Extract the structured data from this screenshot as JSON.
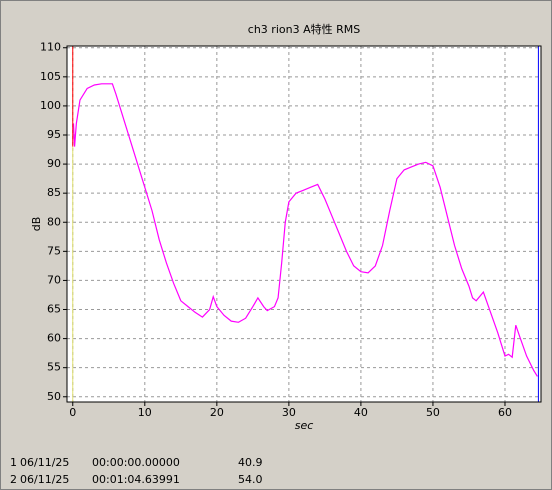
{
  "chart_data": {
    "type": "line",
    "title": "ch3 rion3 A特性 RMS",
    "x_label": "sec",
    "y_label": "dB",
    "color": "#ff00ff",
    "grid": true,
    "xlim": [
      -0.8,
      65
    ],
    "ylim": [
      49.1,
      110.3
    ],
    "xticks": [
      0,
      10,
      20,
      30,
      40,
      50,
      60
    ],
    "yticks": [
      50,
      55,
      60,
      65,
      70,
      75,
      80,
      85,
      90,
      95,
      100,
      105,
      110
    ],
    "x": [
      0.1,
      0.25,
      0.5,
      1,
      2,
      3,
      4,
      5.5,
      6,
      7,
      8,
      9,
      10,
      11,
      12,
      13,
      14,
      15,
      16,
      17,
      18,
      19,
      19.5,
      20,
      21,
      22,
      23,
      24,
      25,
      25.7,
      26.5,
      27,
      28,
      28.5,
      29,
      29.5,
      30,
      31,
      32,
      33,
      34,
      35,
      36,
      37,
      38,
      39,
      40,
      41,
      42,
      43,
      44,
      45,
      46,
      47,
      48,
      49,
      50,
      51,
      52,
      53,
      54,
      55,
      55.5,
      56,
      57,
      58,
      59,
      60,
      60.5,
      61,
      61.5,
      62,
      63,
      64,
      64.5
    ],
    "values": [
      97,
      93,
      97,
      101,
      103,
      103.6,
      103.8,
      103.8,
      102,
      98,
      94,
      90,
      86,
      82,
      77,
      73,
      69.5,
      66.5,
      65.5,
      64.5,
      63.7,
      65,
      67.2,
      65.5,
      64,
      63,
      62.8,
      63.5,
      65.5,
      67,
      65.5,
      64.8,
      65.5,
      67,
      73,
      80,
      83.5,
      85,
      85.5,
      86,
      86.5,
      84,
      81,
      78,
      75,
      72.5,
      71.5,
      71.3,
      72.5,
      76,
      82,
      87.5,
      89,
      89.5,
      90,
      90.3,
      89.7,
      86,
      81,
      76,
      72,
      69,
      67,
      66.5,
      68,
      64.5,
      61,
      57,
      57.3,
      56.8,
      62.3,
      60.5,
      57,
      54.5,
      53.5
    ],
    "cursor_lines": [
      {
        "x": 0,
        "color": "#ff0000",
        "lower_color": "#e0e070"
      },
      {
        "x": 64.63991,
        "color": "#0000ff"
      }
    ]
  },
  "cursors": [
    {
      "index": "1",
      "date": "06/11/25",
      "time": "00:00:00.00000",
      "value": "40.9"
    },
    {
      "index": "2",
      "date": "06/11/25",
      "time": "00:01:04.63991",
      "value": "54.0"
    }
  ]
}
